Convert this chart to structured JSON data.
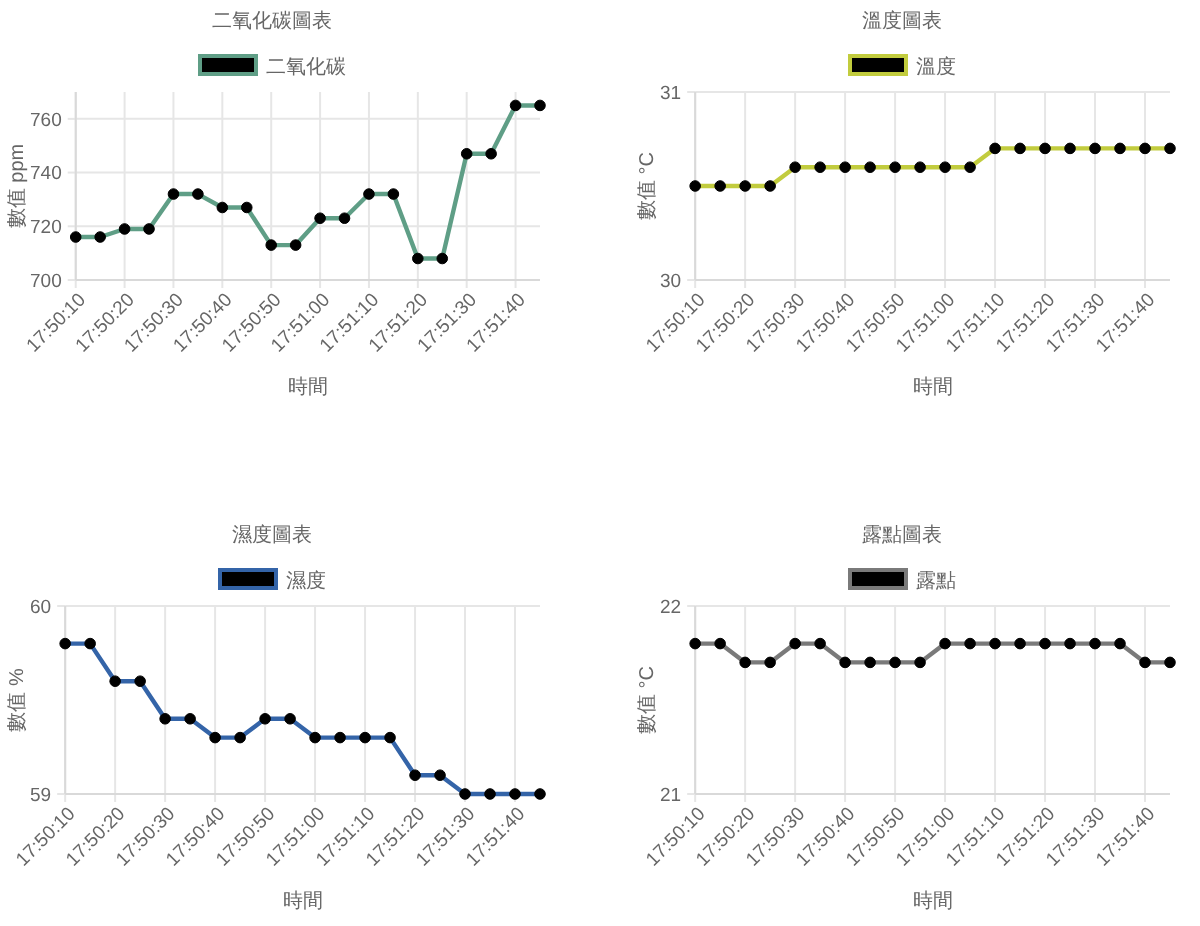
{
  "chart_data": [
    {
      "type": "line",
      "title": "二氧化碳圖表",
      "xlabel": "時間",
      "ylabel": "數值 ppm",
      "categories": [
        "17:50:10",
        null,
        "17:50:20",
        null,
        "17:50:30",
        null,
        "17:50:40",
        null,
        "17:50:50",
        null,
        "17:51:00",
        null,
        "17:51:10",
        null,
        "17:51:20",
        null,
        "17:51:30",
        null,
        "17:51:40",
        null
      ],
      "series": [
        {
          "name": "二氧化碳",
          "color": "#5f9e86",
          "values": [
            716,
            716,
            719,
            719,
            732,
            732,
            727,
            727,
            713,
            713,
            723,
            723,
            732,
            732,
            708,
            708,
            747,
            747,
            765,
            765
          ]
        }
      ],
      "ylim": [
        700,
        770
      ],
      "yticks": [
        700,
        720,
        740,
        760
      ],
      "grid": true,
      "legend": "top",
      "marker": "circle"
    },
    {
      "type": "line",
      "title": "溫度圖表",
      "xlabel": "時間",
      "ylabel": "數值 °C",
      "categories": [
        "17:50:10",
        null,
        "17:50:20",
        null,
        "17:50:30",
        null,
        "17:50:40",
        null,
        "17:50:50",
        null,
        "17:51:00",
        null,
        "17:51:10",
        null,
        "17:51:20",
        null,
        "17:51:30",
        null,
        "17:51:40",
        null
      ],
      "series": [
        {
          "name": "溫度",
          "color": "#c2cc3e",
          "values": [
            30.5,
            30.5,
            30.5,
            30.5,
            30.6,
            30.6,
            30.6,
            30.6,
            30.6,
            30.6,
            30.6,
            30.6,
            30.7,
            30.7,
            30.7,
            30.7,
            30.7,
            30.7,
            30.7,
            30.7
          ]
        }
      ],
      "ylim": [
        30,
        31
      ],
      "yticks": [
        30,
        31
      ],
      "grid": true,
      "legend": "top",
      "marker": "circle"
    },
    {
      "type": "line",
      "title": "濕度圖表",
      "xlabel": "時間",
      "ylabel": "數值 %",
      "categories": [
        "17:50:10",
        null,
        "17:50:20",
        null,
        "17:50:30",
        null,
        "17:50:40",
        null,
        "17:50:50",
        null,
        "17:51:00",
        null,
        "17:51:10",
        null,
        "17:51:20",
        null,
        "17:51:30",
        null,
        "17:51:40",
        null
      ],
      "series": [
        {
          "name": "濕度",
          "color": "#3464a8",
          "values": [
            59.8,
            59.8,
            59.6,
            59.6,
            59.4,
            59.4,
            59.3,
            59.3,
            59.4,
            59.4,
            59.3,
            59.3,
            59.3,
            59.3,
            59.1,
            59.1,
            59,
            59,
            59,
            59
          ]
        }
      ],
      "ylim": [
        59,
        60
      ],
      "yticks": [
        59,
        60
      ],
      "grid": true,
      "legend": "top",
      "marker": "circle"
    },
    {
      "type": "line",
      "title": "露點圖表",
      "xlabel": "時間",
      "ylabel": "數值 °C",
      "categories": [
        "17:50:10",
        null,
        "17:50:20",
        null,
        "17:50:30",
        null,
        "17:50:40",
        null,
        "17:50:50",
        null,
        "17:51:00",
        null,
        "17:51:10",
        null,
        "17:51:20",
        null,
        "17:51:30",
        null,
        "17:51:40",
        null
      ],
      "series": [
        {
          "name": "露點",
          "color": "#7a7a7a",
          "values": [
            21.8,
            21.8,
            21.7,
            21.7,
            21.8,
            21.8,
            21.7,
            21.7,
            21.7,
            21.7,
            21.8,
            21.8,
            21.8,
            21.8,
            21.8,
            21.8,
            21.8,
            21.8,
            21.7,
            21.7
          ]
        }
      ],
      "ylim": [
        21,
        22
      ],
      "yticks": [
        21,
        22
      ],
      "grid": true,
      "legend": "top",
      "marker": "circle"
    }
  ]
}
